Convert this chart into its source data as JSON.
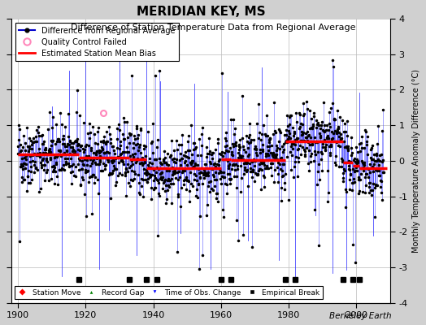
{
  "title": "MERIDIAN KEY, MS",
  "subtitle": "Difference of Station Temperature Data from Regional Average",
  "ylabel": "Monthly Temperature Anomaly Difference (°C)",
  "xlim": [
    1898,
    2010
  ],
  "ylim": [
    -4,
    4
  ],
  "yticks": [
    -4,
    -3,
    -2,
    -1,
    0,
    1,
    2,
    3,
    4
  ],
  "xticks": [
    1900,
    1920,
    1940,
    1960,
    1980,
    2000
  ],
  "background_color": "#d0d0d0",
  "plot_bg_color": "#ffffff",
  "seed": 42,
  "time_start": 1900,
  "time_end": 2008,
  "bias_segments": [
    {
      "x_start": 1900,
      "x_end": 1918,
      "bias": 0.18
    },
    {
      "x_start": 1918,
      "x_end": 1933,
      "bias": 0.1
    },
    {
      "x_start": 1933,
      "x_end": 1938,
      "bias": 0.05
    },
    {
      "x_start": 1938,
      "x_end": 1941,
      "bias": -0.2
    },
    {
      "x_start": 1941,
      "x_end": 1960,
      "bias": -0.22
    },
    {
      "x_start": 1960,
      "x_end": 1963,
      "bias": 0.05
    },
    {
      "x_start": 1963,
      "x_end": 1979,
      "bias": 0.02
    },
    {
      "x_start": 1979,
      "x_end": 1982,
      "bias": 0.55
    },
    {
      "x_start": 1982,
      "x_end": 1996,
      "bias": 0.55
    },
    {
      "x_start": 1996,
      "x_end": 1999,
      "bias": -0.05
    },
    {
      "x_start": 1999,
      "x_end": 2001,
      "bias": -0.15
    },
    {
      "x_start": 2001,
      "x_end": 2009,
      "bias": -0.2
    }
  ],
  "tall_line_times": [
    1910,
    1913,
    1915,
    1920,
    1924,
    1927,
    1930,
    1935,
    1938,
    1942,
    1948,
    1952,
    1957,
    1962,
    1968,
    1972,
    1977,
    1982,
    1988,
    1993,
    1997,
    2001,
    2005
  ],
  "empirical_breaks": [
    1918,
    1933,
    1938,
    1941,
    1960,
    1963,
    1979,
    1982,
    1996,
    1999,
    2001
  ],
  "qc_failed": [
    {
      "year": 1925.3,
      "value": 1.35
    }
  ],
  "legend_line_color": "#0000cc",
  "bias_line_color": "#ff0000",
  "data_line_color": "#3333ff",
  "data_dot_color": "#000000",
  "qc_color": "#ff88bb",
  "break_marker_y": -3.35,
  "berkeley_earth_text": "Berkeley Earth"
}
